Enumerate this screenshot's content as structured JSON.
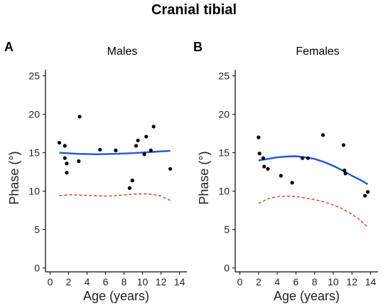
{
  "figure": {
    "title": "Cranial tibial"
  },
  "chart_data": [
    {
      "type": "scatter",
      "panel": "A",
      "subtitle": "Males",
      "xlabel": "Age (years)",
      "ylabel": "Phase (°)",
      "xlim": [
        -0.5,
        14.8
      ],
      "ylim": [
        -0.5,
        25.8
      ],
      "xticks": [
        0,
        2,
        4,
        6,
        8,
        10,
        12,
        14
      ],
      "yticks": [
        0,
        5,
        10,
        15,
        20,
        25
      ],
      "points": [
        [
          1.0,
          16.3
        ],
        [
          1.6,
          15.9
        ],
        [
          1.6,
          14.3
        ],
        [
          1.8,
          13.6
        ],
        [
          1.8,
          12.4
        ],
        [
          3.1,
          13.9
        ],
        [
          3.2,
          19.7
        ],
        [
          5.4,
          15.4
        ],
        [
          7.1,
          15.3
        ],
        [
          8.6,
          10.4
        ],
        [
          8.9,
          11.4
        ],
        [
          9.3,
          15.9
        ],
        [
          9.5,
          16.6
        ],
        [
          10.2,
          14.8
        ],
        [
          10.4,
          17.1
        ],
        [
          10.9,
          15.3
        ],
        [
          11.2,
          18.4
        ],
        [
          13.0,
          12.9
        ]
      ],
      "fit": [
        [
          1.0,
          15.0
        ],
        [
          3,
          14.85
        ],
        [
          5,
          14.8
        ],
        [
          7,
          14.85
        ],
        [
          9,
          14.95
        ],
        [
          11,
          15.1
        ],
        [
          13.0,
          15.25
        ]
      ],
      "lower": [
        [
          1.0,
          9.4
        ],
        [
          2,
          9.55
        ],
        [
          3,
          9.5
        ],
        [
          5,
          9.4
        ],
        [
          6,
          9.35
        ],
        [
          7,
          9.4
        ],
        [
          9,
          9.6
        ],
        [
          10,
          9.65
        ],
        [
          11,
          9.6
        ],
        [
          12,
          9.35
        ],
        [
          13.0,
          8.8
        ]
      ]
    },
    {
      "type": "scatter",
      "panel": "B",
      "subtitle": "Females",
      "xlabel": "Age (years)",
      "ylabel": "Phase (°)",
      "xlim": [
        -0.5,
        14.8
      ],
      "ylim": [
        -0.5,
        25.8
      ],
      "xticks": [
        0,
        2,
        4,
        6,
        8,
        10,
        12,
        14
      ],
      "yticks": [
        0,
        5,
        10,
        15,
        20,
        25
      ],
      "points": [
        [
          2.0,
          17.0
        ],
        [
          2.1,
          14.9
        ],
        [
          2.5,
          14.3
        ],
        [
          2.6,
          13.2
        ],
        [
          3.0,
          12.9
        ],
        [
          4.4,
          12.0
        ],
        [
          5.6,
          11.1
        ],
        [
          6.7,
          14.3
        ],
        [
          7.3,
          14.3
        ],
        [
          8.9,
          17.3
        ],
        [
          11.1,
          16.0
        ],
        [
          11.2,
          12.7
        ],
        [
          11.3,
          12.3
        ],
        [
          13.4,
          9.4
        ],
        [
          13.7,
          9.9
        ]
      ],
      "fit": [
        [
          2.0,
          14.0
        ],
        [
          3,
          14.2
        ],
        [
          4,
          14.4
        ],
        [
          5,
          14.5
        ],
        [
          6,
          14.55
        ],
        [
          7,
          14.4
        ],
        [
          8,
          14.2
        ],
        [
          9,
          13.8
        ],
        [
          10,
          13.3
        ],
        [
          11,
          12.7
        ],
        [
          12,
          12.0
        ],
        [
          13,
          11.4
        ],
        [
          13.7,
          10.9
        ]
      ],
      "lower": [
        [
          2.0,
          8.4
        ],
        [
          3,
          9.0
        ],
        [
          4,
          9.3
        ],
        [
          5,
          9.35
        ],
        [
          6,
          9.3
        ],
        [
          7,
          9.1
        ],
        [
          8,
          8.9
        ],
        [
          9,
          8.6
        ],
        [
          10,
          8.2
        ],
        [
          11,
          7.7
        ],
        [
          12,
          7.0
        ],
        [
          13,
          6.1
        ],
        [
          13.7,
          5.3
        ]
      ]
    }
  ]
}
